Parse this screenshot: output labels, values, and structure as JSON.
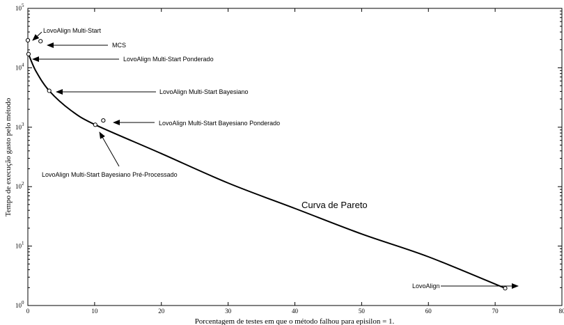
{
  "chart_data": {
    "type": "scatter",
    "xlabel": "Porcentagem de testes em que o método falhou para episilon = 1.",
    "ylabel": "Tempo de execução gasto pelo método",
    "xlim": [
      0,
      80
    ],
    "ylim": [
      1,
      100000
    ],
    "yscale": "log",
    "x_ticks": [
      0,
      10,
      20,
      30,
      40,
      50,
      60,
      70,
      80
    ],
    "y_ticks": [
      {
        "base": "10",
        "exp": "0"
      },
      {
        "base": "10",
        "exp": "1"
      },
      {
        "base": "10",
        "exp": "2"
      },
      {
        "base": "10",
        "exp": "3"
      },
      {
        "base": "10",
        "exp": "4"
      },
      {
        "base": "10",
        "exp": "5"
      }
    ],
    "grid": false,
    "points": [
      {
        "label": "LovoAlign Multi-Start",
        "x": 0.0,
        "y": 29000
      },
      {
        "label": "MCS",
        "x": 1.9,
        "y": 28000
      },
      {
        "label": "LovoAlign Multi-Start Ponderado",
        "x": 0.1,
        "y": 17000
      },
      {
        "label": "LovoAlign Multi-Start Bayesiano",
        "x": 3.2,
        "y": 4100
      },
      {
        "label": "LovoAlign Multi-Start Bayesiano Ponderado",
        "x": 11.3,
        "y": 1300
      },
      {
        "label": "LovoAlign Multi-Start Bayesiano Pré-Processado",
        "x": 10.1,
        "y": 1100
      },
      {
        "label": "LovoAlign",
        "x": 71.5,
        "y": 1.95
      }
    ],
    "pareto_curve": {
      "label": "Curva de Pareto",
      "points": [
        [
          0.1,
          17000
        ],
        [
          1.2,
          8800
        ],
        [
          3.2,
          4100
        ],
        [
          6.5,
          1900
        ],
        [
          10.1,
          1100
        ],
        [
          20,
          360
        ],
        [
          30,
          115
        ],
        [
          40,
          43
        ],
        [
          50,
          16
        ],
        [
          60,
          6.6
        ],
        [
          71.5,
          1.95
        ]
      ]
    }
  }
}
